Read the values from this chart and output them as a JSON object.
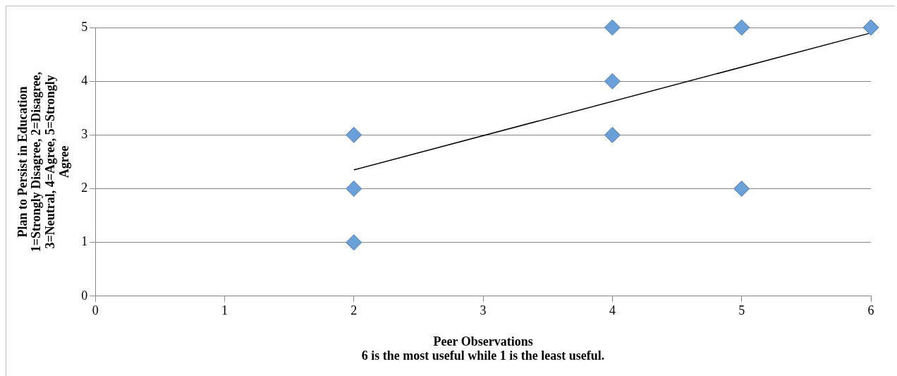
{
  "chart_data": {
    "type": "scatter",
    "xlabel": "Peer Observations\n6 is the most useful while 1 is the least useful.",
    "ylabel": "Plan to Persist in Education\n1=Strongly Disagree, 2=Disagree,\n3=Neutral, 4=Agree, 5=Strongly\nAgree",
    "xlim": [
      0,
      6
    ],
    "xticks": [
      0,
      1,
      2,
      3,
      4,
      5,
      6
    ],
    "ylim": [
      0,
      5
    ],
    "yticks": [
      0,
      1,
      2,
      3,
      4,
      5
    ],
    "grid": "y",
    "legend": false,
    "series": [
      {
        "type": "scatter",
        "color": "#6a9fd8",
        "marker": "diamond",
        "x": [
          2,
          2,
          2,
          4,
          4,
          4,
          5,
          5,
          6
        ],
        "values": [
          3,
          2,
          1,
          5,
          4,
          3,
          5,
          2,
          5
        ]
      },
      {
        "type": "line",
        "color": "#000000",
        "marker": "none",
        "line_style": "solid",
        "x": [
          2,
          6
        ],
        "values": [
          2.35,
          4.9
        ]
      }
    ]
  }
}
